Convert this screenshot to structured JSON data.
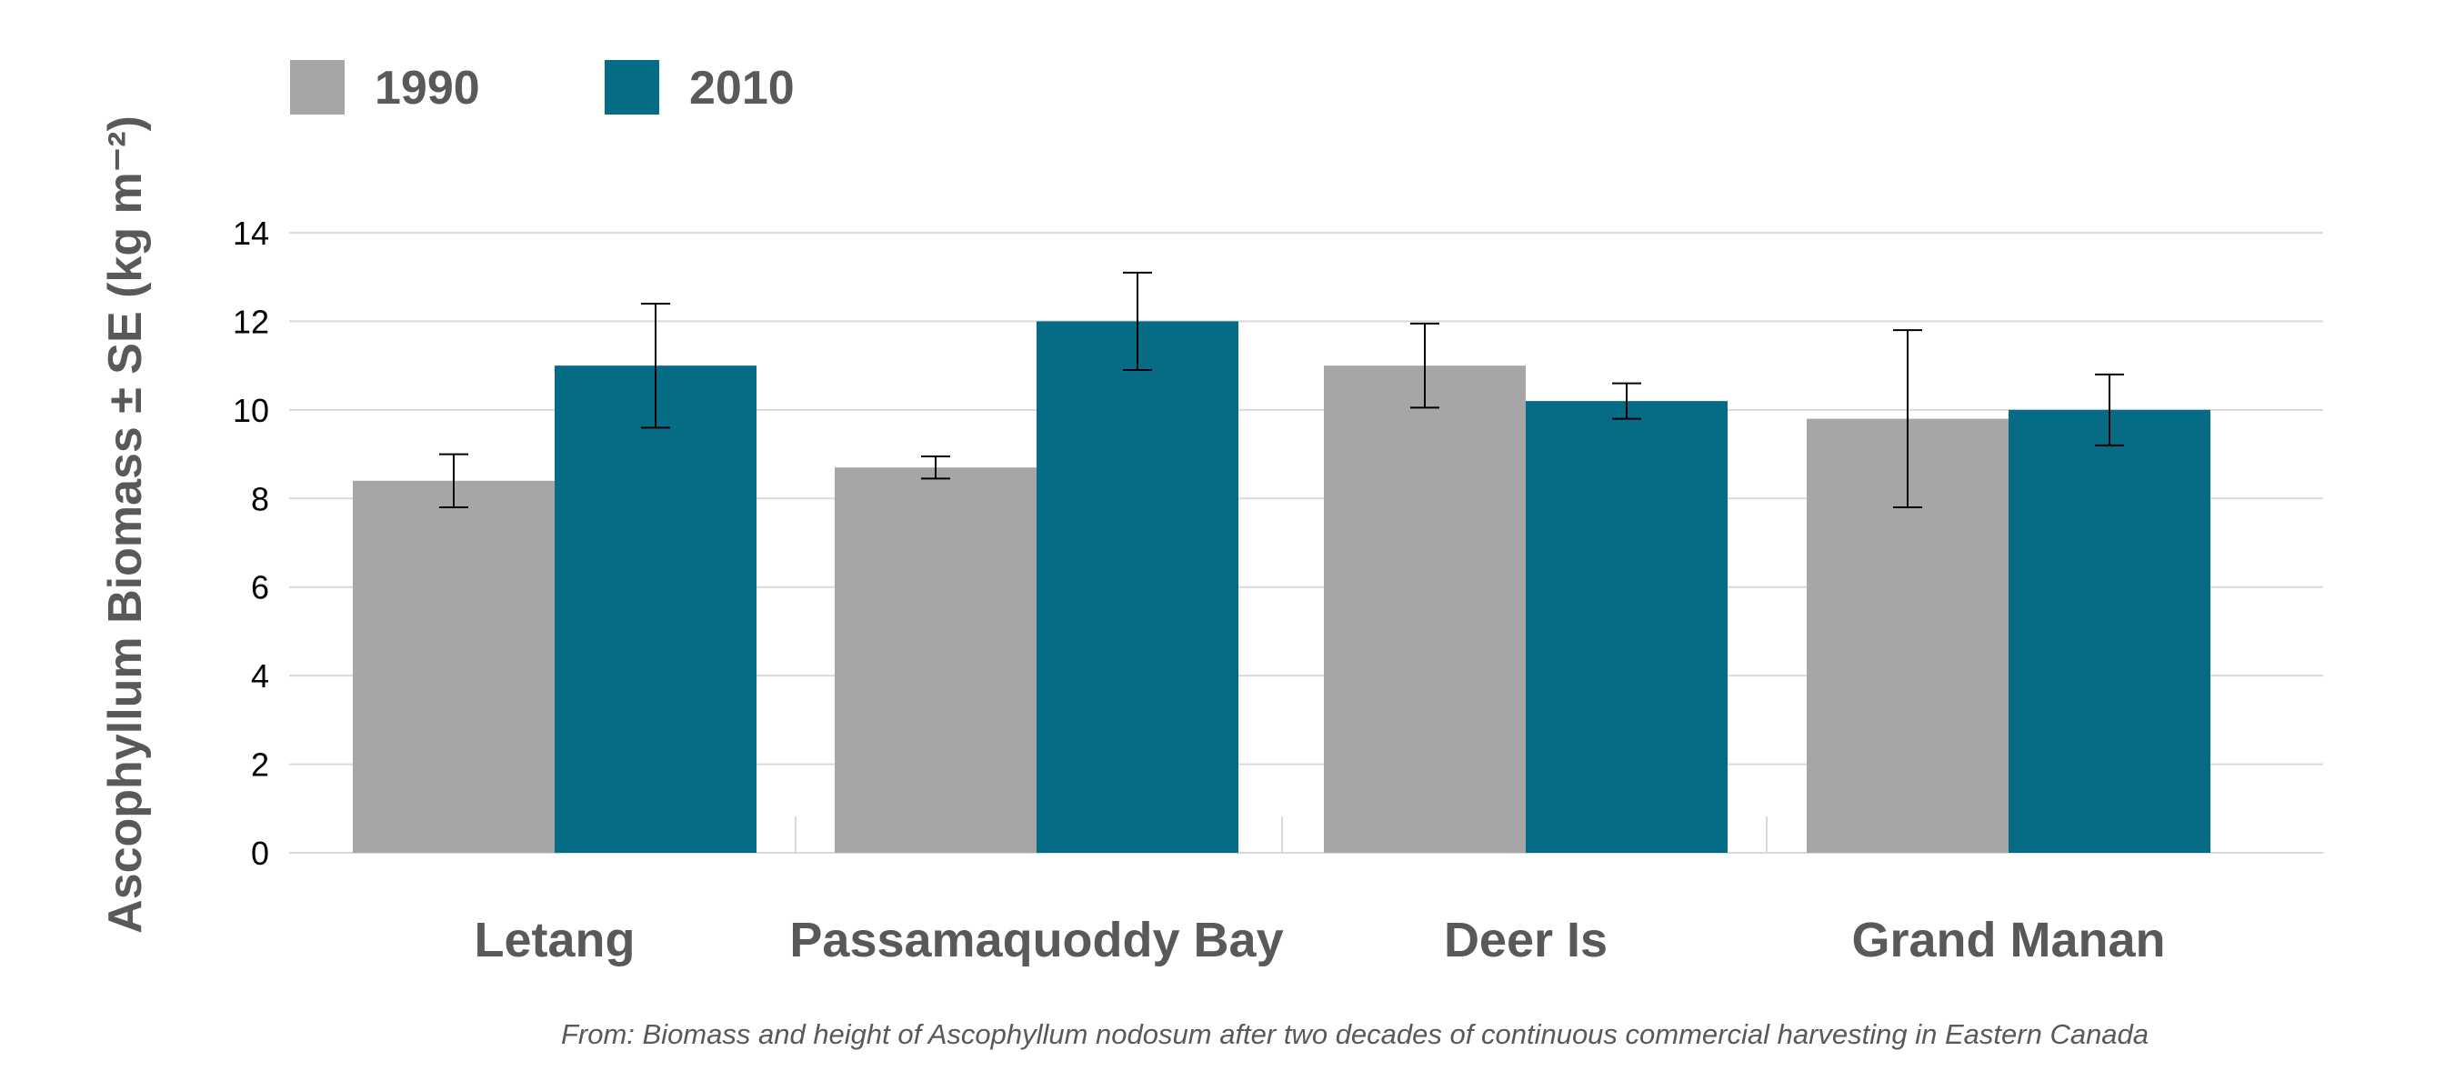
{
  "chart_data": {
    "type": "bar",
    "categories": [
      "Letang",
      "Passamaquoddy Bay",
      "Deer Is",
      "Grand Manan"
    ],
    "series": [
      {
        "name": "1990",
        "color": "#a6a6a6",
        "values": [
          8.4,
          8.7,
          11.0,
          9.8
        ],
        "error": [
          0.6,
          0.25,
          0.95,
          2.0
        ]
      },
      {
        "name": "2010",
        "color": "#066b85",
        "values": [
          11.0,
          12.0,
          10.2,
          10.0
        ],
        "error": [
          1.4,
          1.1,
          0.4,
          0.8
        ]
      }
    ],
    "ylabel": "Ascophyllum Biomass ± SE (kg m⁻²)",
    "yticks": [
      "0",
      "2",
      "4",
      "6",
      "8",
      "10",
      "12",
      "14"
    ],
    "ylim": [
      0,
      14
    ],
    "grid": true,
    "legend": "top-left"
  },
  "source_note": "From: Biomass and height of Ascophyllum nodosum after two decades of continuous commercial harvesting in Eastern Canada"
}
